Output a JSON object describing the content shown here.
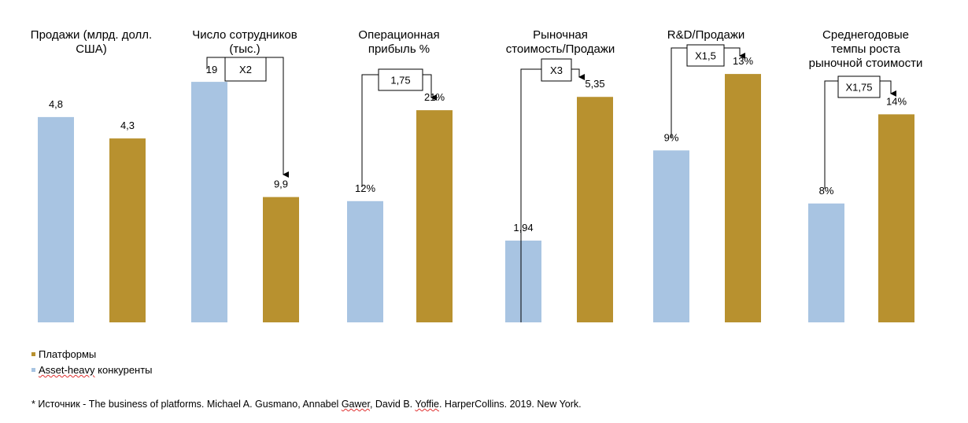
{
  "colors": {
    "platforms": "#b8912f",
    "asset_heavy": "#a8c4e2"
  },
  "chart_data": [
    {
      "type": "bar",
      "title": "Продажи (млрд. долл. США)",
      "title_lines": [
        "Продажи (млрд. долл.",
        "США)"
      ],
      "categories": [
        "Asset-heavy конкуренты",
        "Платформы"
      ],
      "values": [
        4.8,
        4.3
      ],
      "labels": [
        "4,8",
        "4,3"
      ],
      "annotation": null
    },
    {
      "type": "bar",
      "title": "Число сотрудников (тыс.)",
      "title_lines": [
        "Число сотрудников",
        "(тыс.)"
      ],
      "categories": [
        "Asset-heavy конкуренты",
        "Платформы"
      ],
      "values": [
        19,
        9.9
      ],
      "labels": [
        "19",
        "9,9"
      ],
      "annotation": "X2"
    },
    {
      "type": "bar",
      "title": "Операционная прибыль %",
      "title_lines": [
        "Операционная",
        "прибыль %"
      ],
      "categories": [
        "Asset-heavy конкуренты",
        "Платформы"
      ],
      "values": [
        12,
        21
      ],
      "labels": [
        "12%",
        "21%"
      ],
      "annotation": "1,75"
    },
    {
      "type": "bar",
      "title": "Рыночная стоимость/Продажи",
      "title_lines": [
        "Рыночная",
        "стоимость/Продажи"
      ],
      "categories": [
        "Asset-heavy конкуренты",
        "Платформы"
      ],
      "values": [
        1.94,
        5.35
      ],
      "labels": [
        "1,94",
        "5,35"
      ],
      "annotation": "X3"
    },
    {
      "type": "bar",
      "title": "R&D/Продажи",
      "title_lines": [
        "R&D/Продажи"
      ],
      "categories": [
        "Asset-heavy конкуренты",
        "Платформы"
      ],
      "values": [
        9,
        13
      ],
      "labels": [
        "9%",
        "13%"
      ],
      "annotation": "X1,5"
    },
    {
      "type": "bar",
      "title": "Среднегодовые темпы роста рыночной стоимости",
      "title_lines": [
        "Среднегодовые",
        "темпы роста",
        "рыночной стоимости"
      ],
      "categories": [
        "Asset-heavy конкуренты",
        "Платформы"
      ],
      "values": [
        8,
        14
      ],
      "labels": [
        "8%",
        "14%"
      ],
      "annotation": "X1,75"
    }
  ],
  "legend": {
    "position": "bottom-left",
    "items": [
      "Платформы",
      "Asset-heavy конкуренты"
    ],
    "asset_word": "Asset-heavy",
    "asset_rest": " конкуренты"
  },
  "source": {
    "prefix": "* Источник - The business of platforms. Michael A. Gusmano, Annabel ",
    "gawer": "Gawer",
    "mid": ", David B. ",
    "yoffie": "Yoffie",
    "suffix": ". HarperCollins. 2019. New York."
  }
}
